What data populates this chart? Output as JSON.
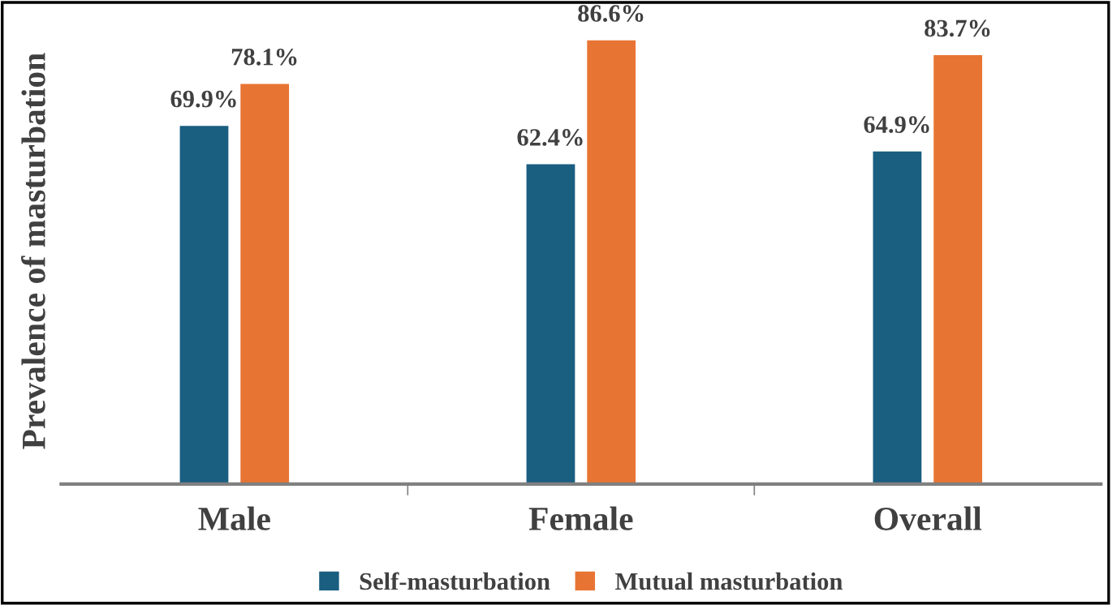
{
  "chart_data": {
    "type": "bar",
    "ylabel": "Prevalence of masturbation",
    "categories": [
      "Male",
      "Female",
      "Overall"
    ],
    "series": [
      {
        "name": "Self-masturbation",
        "color": "#1a5e80",
        "values": [
          69.9,
          62.4,
          64.9
        ],
        "value_labels": [
          "69.9%",
          "62.4%",
          "64.9%"
        ]
      },
      {
        "name": "Mutual masturbation",
        "color": "#e87433",
        "values": [
          78.1,
          86.6,
          83.7
        ],
        "value_labels": [
          "78.1%",
          "86.6%",
          "83.7%"
        ]
      }
    ],
    "legend": "bottom",
    "grid": false
  }
}
